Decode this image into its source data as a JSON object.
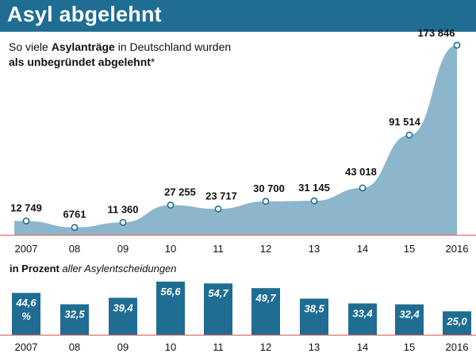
{
  "header": {
    "title": "Asyl abgelehnt"
  },
  "subtitle": {
    "part1": "So viele ",
    "bold1": "Asylanträge",
    "part2": " in Deutschland wurden",
    "bold2": "als unbegründet abgelehnt",
    "suffix": "*"
  },
  "percent_heading": {
    "bold": "in Prozent",
    "italic": " aller Asylentscheidungen"
  },
  "colors": {
    "header": "#1f6d93",
    "area": "#8cb6cc",
    "bar": "#1f6d93",
    "axis": "#e07070"
  },
  "chart_data": [
    {
      "type": "area",
      "categories": [
        "2007",
        "08",
        "09",
        "10",
        "11",
        "12",
        "13",
        "14",
        "15",
        "2016"
      ],
      "values": [
        12749,
        6761,
        11360,
        27255,
        23717,
        30700,
        31145,
        43018,
        91514,
        173846
      ],
      "labels": [
        "12 749",
        "6761",
        "11 360",
        "27 255",
        "23 717",
        "30 700",
        "31 145",
        "43 018",
        "91 514",
        "173 846"
      ],
      "ylim": [
        0,
        173846
      ]
    },
    {
      "type": "bar",
      "categories": [
        "2007",
        "08",
        "09",
        "10",
        "11",
        "12",
        "13",
        "14",
        "15",
        "2016"
      ],
      "values": [
        44.6,
        32.5,
        39.4,
        56.6,
        54.7,
        49.7,
        38.5,
        33.4,
        32.4,
        25.0
      ],
      "labels": [
        "44,6",
        "32,5",
        "39,4",
        "56,6",
        "54,7",
        "49,7",
        "38,5",
        "33,4",
        "32,4",
        "25,0"
      ],
      "first_label_unit": "%",
      "ylim": [
        0,
        56.6
      ]
    }
  ]
}
